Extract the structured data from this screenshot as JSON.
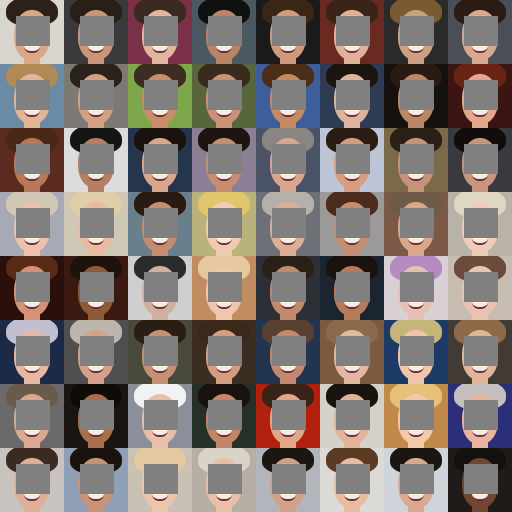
{
  "gallery": {
    "rows": 8,
    "cols": 8,
    "mask_color": "#808080",
    "tiles": [
      {
        "bg": "#d9d6cf",
        "hair": "#2b2118",
        "skin": "#d9a887"
      },
      {
        "bg": "#3a3a3c",
        "hair": "#2a1f17",
        "skin": "#c99477"
      },
      {
        "bg": "#7a3046",
        "hair": "#3a2a20",
        "skin": "#e0b6a0"
      },
      {
        "bg": "#4a5862",
        "hair": "#101010",
        "skin": "#b98466"
      },
      {
        "bg": "#1a1a1a",
        "hair": "#3b2616",
        "skin": "#cf9b7c"
      },
      {
        "bg": "#6a2a22",
        "hair": "#3a2418",
        "skin": "#e1b29a"
      },
      {
        "bg": "#2a2a2a",
        "hair": "#7a5a30",
        "skin": "#caa082"
      },
      {
        "bg": "#4a4f57",
        "hair": "#2a1b14",
        "skin": "#d7aa90"
      },
      {
        "bg": "#6b8aa6",
        "hair": "#b08a55",
        "skin": "#e2b595"
      },
      {
        "bg": "#7d7a76",
        "hair": "#2b211b",
        "skin": "#d3a083"
      },
      {
        "bg": "#7ea64b",
        "hair": "#3c2d20",
        "skin": "#c98d6c"
      },
      {
        "bg": "#58663e",
        "hair": "#3a2a1e",
        "skin": "#c89277"
      },
      {
        "bg": "#3c5f9c",
        "hair": "#4b2d18",
        "skin": "#c48a64"
      },
      {
        "bg": "#2e3b55",
        "hair": "#1b140f",
        "skin": "#dcb4a0"
      },
      {
        "bg": "#14110f",
        "hair": "#2b1a12",
        "skin": "#ba8769"
      },
      {
        "bg": "#3a1512",
        "hair": "#6a2416",
        "skin": "#e0a98d"
      },
      {
        "bg": "#5c2b20",
        "hair": "#4a2818",
        "skin": "#b7785a"
      },
      {
        "bg": "#dcdcdc",
        "hair": "#151515",
        "skin": "#b57f63"
      },
      {
        "bg": "#26354e",
        "hair": "#1a120d",
        "skin": "#d8a68a"
      },
      {
        "bg": "#8a7f95",
        "hair": "#1c140e",
        "skin": "#c68e70"
      },
      {
        "bg": "#4a5366",
        "hair": "#8a8580",
        "skin": "#d7a690"
      },
      {
        "bg": "#bcc4d6",
        "hair": "#2a1c13",
        "skin": "#d69e80"
      },
      {
        "bg": "#7a6a4a",
        "hair": "#2a2015",
        "skin": "#c3937a"
      },
      {
        "bg": "#383a40",
        "hair": "#120d0a",
        "skin": "#c8967c"
      },
      {
        "bg": "#a7a9b4",
        "hair": "#d2c6b5",
        "skin": "#ecc2ac"
      },
      {
        "bg": "#cfc8b6",
        "hair": "#e0cfa6",
        "skin": "#e7bba2"
      },
      {
        "bg": "#6a7f8c",
        "hair": "#2a1a12",
        "skin": "#c48d70"
      },
      {
        "bg": "#b9b27a",
        "hair": "#e2c46a",
        "skin": "#f0cbb0"
      },
      {
        "bg": "#6e7078",
        "hair": "#b7b0a8",
        "skin": "#dcae96"
      },
      {
        "bg": "#9c9a98",
        "hair": "#4a2b1c",
        "skin": "#c48e72"
      },
      {
        "bg": "#7a5a46",
        "hair": "#6e5a48",
        "skin": "#d8a88c"
      },
      {
        "bg": "#b9b2a6",
        "hair": "#e0d7c2",
        "skin": "#efccb6"
      },
      {
        "bg": "#2a0f0b",
        "hair": "#5a2a18",
        "skin": "#d49378"
      },
      {
        "bg": "#3a1a10",
        "hair": "#1f120b",
        "skin": "#8a5a3a"
      },
      {
        "bg": "#cfcfcf",
        "hair": "#2b2b2b",
        "skin": "#d0b0a0"
      },
      {
        "bg": "#c08c60",
        "hair": "#e6c8a0",
        "skin": "#f1c7ac"
      },
      {
        "bg": "#2d2f36",
        "hair": "#2a2018",
        "skin": "#c08a6f"
      },
      {
        "bg": "#1b2431",
        "hair": "#1a120e",
        "skin": "#b57c5c"
      },
      {
        "bg": "#d8d0d4",
        "hair": "#b58ac0",
        "skin": "#e7c0b4"
      },
      {
        "bg": "#c6bcb0",
        "hair": "#6a4a3a",
        "skin": "#e8c4b0"
      },
      {
        "bg": "#1c2a48",
        "hair": "#c2bfd0",
        "skin": "#e4b8a2"
      },
      {
        "bg": "#4f4f4f",
        "hair": "#bdb6ad",
        "skin": "#d4a08a"
      },
      {
        "bg": "#4a4a3c",
        "hair": "#2a1e13",
        "skin": "#c69076"
      },
      {
        "bg": "#3b2d20",
        "hair": "#3b2818",
        "skin": "#d29d80"
      },
      {
        "bg": "#22344e",
        "hair": "#5a4030",
        "skin": "#c48870"
      },
      {
        "bg": "#7a5a40",
        "hair": "#8a6a4a",
        "skin": "#e3b8a0"
      },
      {
        "bg": "#1d3a66",
        "hair": "#c6b57a",
        "skin": "#f0c6a8"
      },
      {
        "bg": "#413a35",
        "hair": "#8f6a48",
        "skin": "#e1b599"
      },
      {
        "bg": "#6a6a6a",
        "hair": "#6a5a4a",
        "skin": "#d9a992"
      },
      {
        "bg": "#1b1511",
        "hair": "#0f0b08",
        "skin": "#a6704c"
      },
      {
        "bg": "#8a8f9a",
        "hair": "#f2f2f2",
        "skin": "#e7c0aa"
      },
      {
        "bg": "#243028",
        "hair": "#1a120d",
        "skin": "#c4866a"
      },
      {
        "bg": "#b2200e",
        "hair": "#3a2418",
        "skin": "#e0a888"
      },
      {
        "bg": "#d6d1c8",
        "hair": "#1a1410",
        "skin": "#e1b39a"
      },
      {
        "bg": "#c18a4a",
        "hair": "#e6c078",
        "skin": "#f3caa8"
      },
      {
        "bg": "#2b2f7a",
        "hair": "#c4c0c0",
        "skin": "#e7b4a0"
      },
      {
        "bg": "#c8c3bf",
        "hair": "#3a2a22",
        "skin": "#ddae98"
      },
      {
        "bg": "#8f9fb5",
        "hair": "#1a120d",
        "skin": "#c89478"
      },
      {
        "bg": "#c9c2b4",
        "hair": "#e2c9a2",
        "skin": "#ecc6aa"
      },
      {
        "bg": "#b6aea4",
        "hair": "#dad4c8",
        "skin": "#e8c0aa"
      },
      {
        "bg": "#b3b5bd",
        "hair": "#1c1510",
        "skin": "#d0a08a"
      },
      {
        "bg": "#dcdad6",
        "hair": "#5a3b24",
        "skin": "#e8bca0"
      },
      {
        "bg": "#d0d4db",
        "hair": "#1a1712",
        "skin": "#d9a88e"
      },
      {
        "bg": "#1e1b18",
        "hair": "#14100c",
        "skin": "#6e4632"
      }
    ]
  }
}
